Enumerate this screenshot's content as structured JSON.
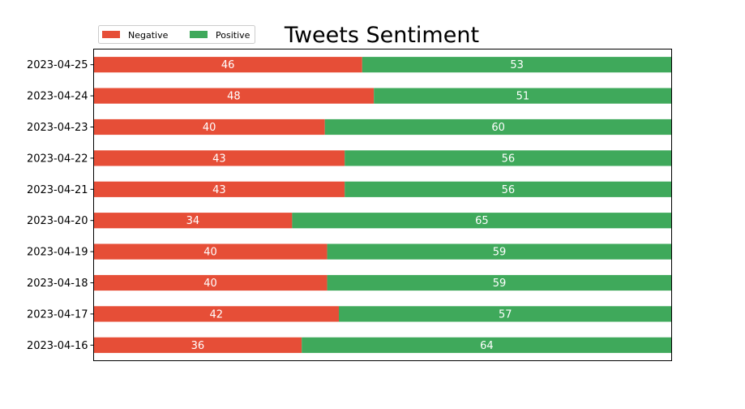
{
  "chart_data": {
    "type": "bar",
    "orientation": "horizontal",
    "stacked": true,
    "normalized": true,
    "title": "Tweets Sentiment",
    "xlabel": "",
    "ylabel": "",
    "xlim": [
      0,
      100
    ],
    "x_axis_visible": false,
    "grid": false,
    "legend_position": "top-left",
    "categories": [
      "2023-04-16",
      "2023-04-17",
      "2023-04-18",
      "2023-04-19",
      "2023-04-20",
      "2023-04-21",
      "2023-04-22",
      "2023-04-23",
      "2023-04-24",
      "2023-04-25"
    ],
    "series": [
      {
        "name": "Negative",
        "color": "#e64e37",
        "values": [
          36,
          42,
          40,
          40,
          34,
          43,
          43,
          40,
          48,
          46
        ],
        "labels": [
          "36",
          "42",
          "40",
          "40",
          "34",
          "43",
          "43",
          "40",
          "48",
          "46"
        ]
      },
      {
        "name": "Positive",
        "color": "#3fa95b",
        "values": [
          64,
          57,
          59,
          59,
          65,
          56,
          56,
          60,
          51,
          53
        ],
        "labels": [
          "64",
          "57",
          "59",
          "59",
          "65",
          "56",
          "56",
          "60",
          "51",
          "53"
        ]
      }
    ]
  }
}
